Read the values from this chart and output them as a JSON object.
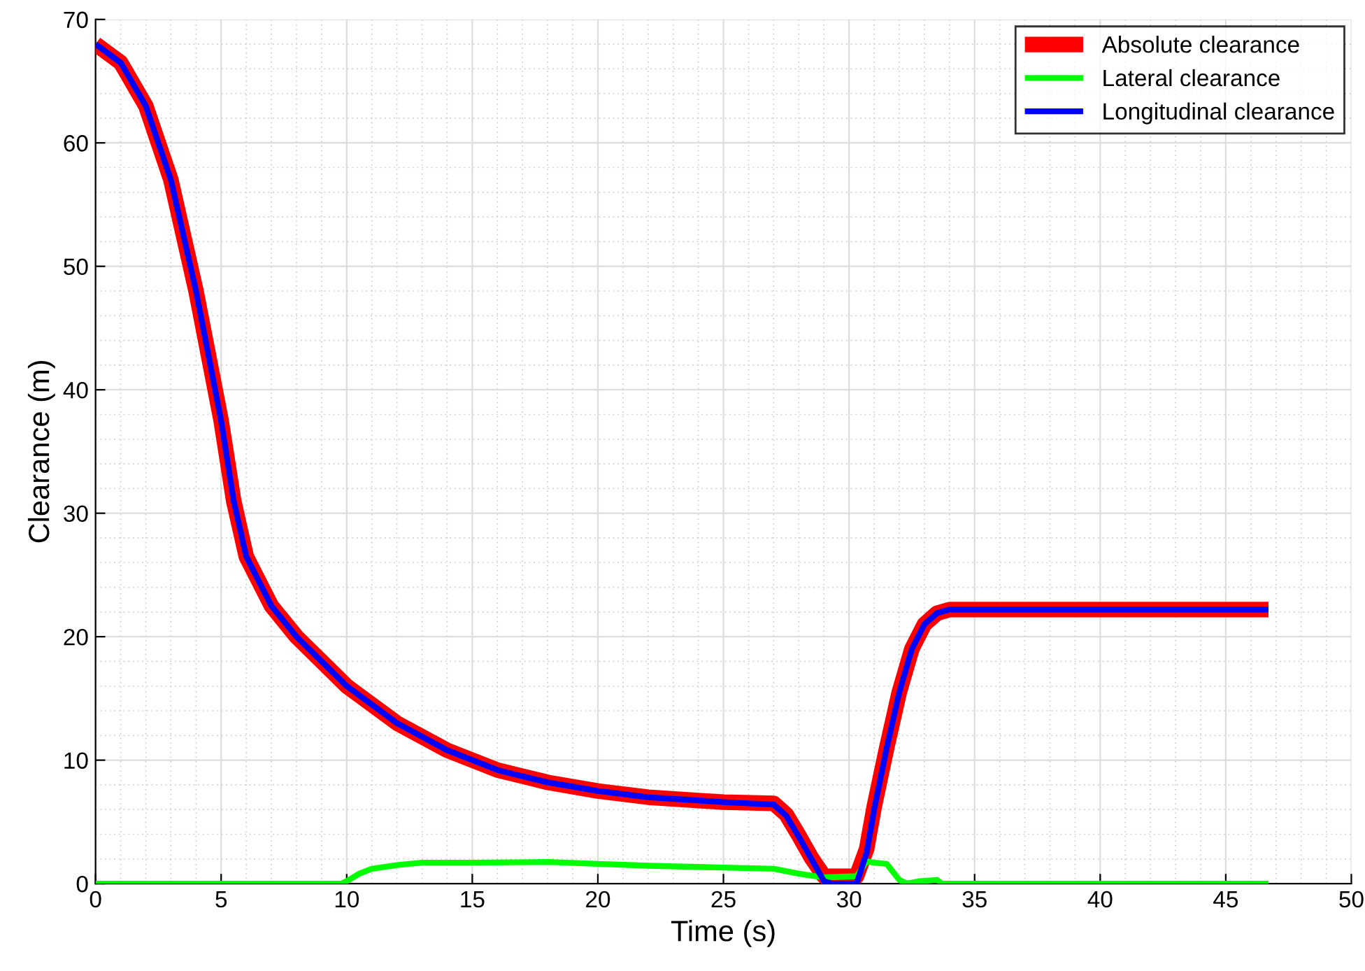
{
  "chart_data": {
    "type": "line",
    "xlabel": "Time (s)",
    "ylabel": "Clearance (m)",
    "xlim": [
      0,
      50
    ],
    "ylim": [
      0,
      70
    ],
    "xticks": [
      0,
      5,
      10,
      15,
      20,
      25,
      30,
      35,
      40,
      45,
      50
    ],
    "yticks": [
      0,
      10,
      20,
      30,
      40,
      50,
      60,
      70
    ],
    "grid": true,
    "legend": "top right",
    "line_style": "solid",
    "marker": "none",
    "series": [
      {
        "name": "Absolute clearance",
        "color": "#ff0000",
        "x": [
          0,
          1,
          2,
          3,
          4,
          5,
          5.5,
          6,
          7,
          8,
          9,
          10,
          12,
          14,
          16,
          18,
          20,
          22,
          25,
          27,
          27.5,
          28,
          28.5,
          29,
          29.3,
          30.3,
          30.7,
          31,
          31.5,
          32,
          32.5,
          33,
          33.5,
          34,
          46.7
        ],
        "values": [
          68,
          66.5,
          63,
          57,
          48,
          37.5,
          31,
          26.5,
          22.5,
          20,
          18,
          16,
          13,
          10.8,
          9.2,
          8.2,
          7.5,
          7.0,
          6.6,
          6.5,
          5.6,
          3.9,
          2.1,
          0.6,
          0.6,
          0.6,
          2.8,
          6.2,
          11,
          15.5,
          19,
          21,
          21.9,
          22.2,
          22.2
        ]
      },
      {
        "name": "Lateral clearance",
        "color": "#00ff00",
        "x": [
          0,
          9.8,
          10,
          10.5,
          11,
          12,
          13,
          15,
          18,
          20,
          22,
          25,
          27,
          28,
          29,
          30.3,
          30.7,
          31,
          31.5,
          32,
          32.3,
          32.8,
          33.5,
          33.7,
          46.7
        ],
        "values": [
          0,
          0,
          0.2,
          0.8,
          1.2,
          1.5,
          1.7,
          1.7,
          1.75,
          1.6,
          1.45,
          1.3,
          1.2,
          0.8,
          0.5,
          0.6,
          1.8,
          1.7,
          1.6,
          0.3,
          0,
          0.2,
          0.3,
          0,
          0
        ]
      },
      {
        "name": "Longitudinal clearance",
        "color": "#0000ff",
        "x": [
          0,
          1,
          2,
          3,
          4,
          5,
          5.5,
          6,
          7,
          8,
          9,
          10,
          12,
          14,
          16,
          18,
          20,
          22,
          25,
          27,
          27.5,
          28,
          28.5,
          29,
          29.3,
          30.3,
          30.7,
          31,
          31.5,
          32,
          32.5,
          33,
          33.5,
          34,
          46.7
        ],
        "values": [
          68,
          66.5,
          63,
          57,
          48,
          37.5,
          31,
          26.5,
          22.5,
          20,
          18,
          16,
          13,
          10.8,
          9.2,
          8.2,
          7.5,
          7.0,
          6.6,
          6.4,
          5.5,
          3.8,
          2,
          0.2,
          0,
          0,
          2.5,
          6,
          11,
          15.5,
          19,
          21,
          21.9,
          22.2,
          22.2
        ]
      }
    ]
  }
}
